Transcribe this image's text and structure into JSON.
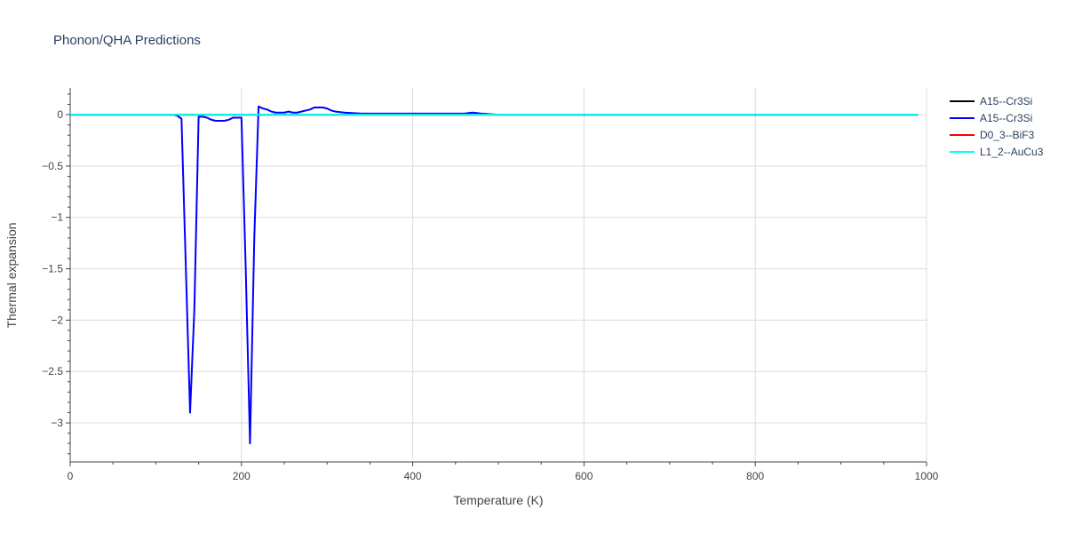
{
  "chart_data": {
    "type": "line",
    "title": "Phonon/QHA Predictions",
    "xlabel": "Temperature (K)",
    "ylabel": "Thermal expansion",
    "xlim": [
      0,
      1000
    ],
    "ylim": [
      -3.38,
      0.26
    ],
    "x_ticks": [
      0,
      200,
      400,
      600,
      800,
      1000
    ],
    "x_tick_labels": [
      "0",
      "200",
      "400",
      "600",
      "800",
      "1000"
    ],
    "y_ticks": [
      0,
      -0.5,
      -1,
      -1.5,
      -2,
      -2.5,
      -3
    ],
    "y_tick_labels": [
      "0",
      "−0.5",
      "−1",
      "−1.5",
      "−2",
      "−2.5",
      "−3"
    ],
    "grid": true,
    "legend_position": "top-right",
    "series": [
      {
        "name": "A15--Cr3Si",
        "color": "#000000",
        "x": [
          0,
          990
        ],
        "y": [
          0,
          0
        ]
      },
      {
        "name": "A15--Cr3Si",
        "color": "#0000ff",
        "x": [
          0,
          120,
          125,
          130,
          140,
          145,
          150,
          155,
          160,
          165,
          170,
          175,
          180,
          185,
          190,
          195,
          200,
          205,
          210,
          215,
          220,
          225,
          230,
          235,
          240,
          245,
          250,
          255,
          260,
          265,
          270,
          275,
          280,
          285,
          290,
          295,
          300,
          305,
          310,
          320,
          340,
          360,
          400,
          440,
          460,
          470,
          480,
          500,
          600,
          800,
          990
        ],
        "y": [
          0,
          0,
          -0.01,
          -0.04,
          -2.9,
          -1.9,
          -0.02,
          -0.02,
          -0.03,
          -0.05,
          -0.06,
          -0.06,
          -0.06,
          -0.05,
          -0.03,
          -0.03,
          -0.03,
          -1.5,
          -3.2,
          -1.2,
          0.08,
          0.06,
          0.05,
          0.03,
          0.02,
          0.02,
          0.02,
          0.03,
          0.02,
          0.02,
          0.03,
          0.04,
          0.05,
          0.07,
          0.07,
          0.07,
          0.06,
          0.04,
          0.03,
          0.02,
          0.01,
          0.01,
          0.01,
          0.01,
          0.01,
          0.02,
          0.01,
          0.0,
          0,
          0,
          0
        ]
      },
      {
        "name": "D0_3--BiF3",
        "color": "#ff0000",
        "x": [
          0,
          990
        ],
        "y": [
          0,
          0
        ]
      },
      {
        "name": "L1_2--AuCu3",
        "color": "#00ffff",
        "x": [
          0,
          990
        ],
        "y": [
          0,
          0
        ]
      }
    ]
  }
}
